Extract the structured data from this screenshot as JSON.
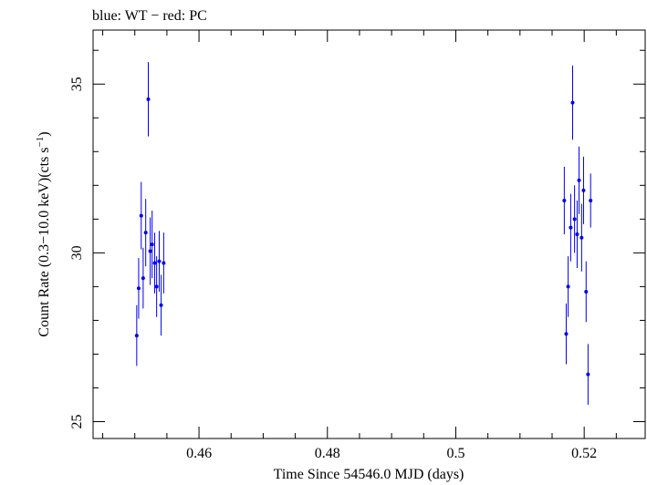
{
  "chart_data": {
    "type": "scatter",
    "title": "blue: WT − red: PC",
    "xlabel": "Time Since 54546.0 MJD (days)",
    "ylabel_main": "Count Rate (0.3−10.0 keV)(cts s",
    "ylabel_sup": "−1",
    "ylabel_close": ")",
    "xlim": [
      0.4435,
      0.5295
    ],
    "ylim": [
      24.5,
      36.6
    ],
    "grid": false,
    "xticks": [
      0.46,
      0.48,
      0.5,
      0.52
    ],
    "xtick_labels": [
      "0.46",
      "0.48",
      "0.5",
      "0.52"
    ],
    "yticks": [
      25,
      30,
      35
    ],
    "ytick_labels": [
      "25",
      "30",
      "35"
    ],
    "series": [
      {
        "color": "#0000ee",
        "points": [
          {
            "x": 0.4503,
            "y": 27.55,
            "err": 0.9
          },
          {
            "x": 0.4506,
            "y": 28.95,
            "err": 0.9
          },
          {
            "x": 0.451,
            "y": 31.1,
            "err": 1.0
          },
          {
            "x": 0.4513,
            "y": 29.25,
            "err": 0.9
          },
          {
            "x": 0.4517,
            "y": 30.6,
            "err": 1.0
          },
          {
            "x": 0.4521,
            "y": 34.55,
            "err": 1.1
          },
          {
            "x": 0.4524,
            "y": 30.05,
            "err": 1.0
          },
          {
            "x": 0.4527,
            "y": 30.25,
            "err": 1.0
          },
          {
            "x": 0.4531,
            "y": 29.7,
            "err": 0.9
          },
          {
            "x": 0.4534,
            "y": 29.0,
            "err": 0.9
          },
          {
            "x": 0.4538,
            "y": 29.75,
            "err": 0.9
          },
          {
            "x": 0.4541,
            "y": 28.45,
            "err": 0.9
          },
          {
            "x": 0.4545,
            "y": 29.7,
            "err": 0.9
          },
          {
            "x": 0.5169,
            "y": 31.55,
            "err": 1.0
          },
          {
            "x": 0.5172,
            "y": 27.6,
            "err": 0.9
          },
          {
            "x": 0.5175,
            "y": 29.0,
            "err": 0.9
          },
          {
            "x": 0.5179,
            "y": 30.75,
            "err": 1.0
          },
          {
            "x": 0.5182,
            "y": 34.45,
            "err": 1.1
          },
          {
            "x": 0.5185,
            "y": 31.0,
            "err": 1.0
          },
          {
            "x": 0.5189,
            "y": 30.55,
            "err": 1.0
          },
          {
            "x": 0.5192,
            "y": 32.15,
            "err": 1.0
          },
          {
            "x": 0.5196,
            "y": 30.45,
            "err": 1.0
          },
          {
            "x": 0.5199,
            "y": 31.85,
            "err": 1.0
          },
          {
            "x": 0.5203,
            "y": 28.85,
            "err": 0.9
          },
          {
            "x": 0.5206,
            "y": 26.4,
            "err": 0.9
          },
          {
            "x": 0.521,
            "y": 31.55,
            "err": 0.8
          }
        ]
      }
    ]
  }
}
